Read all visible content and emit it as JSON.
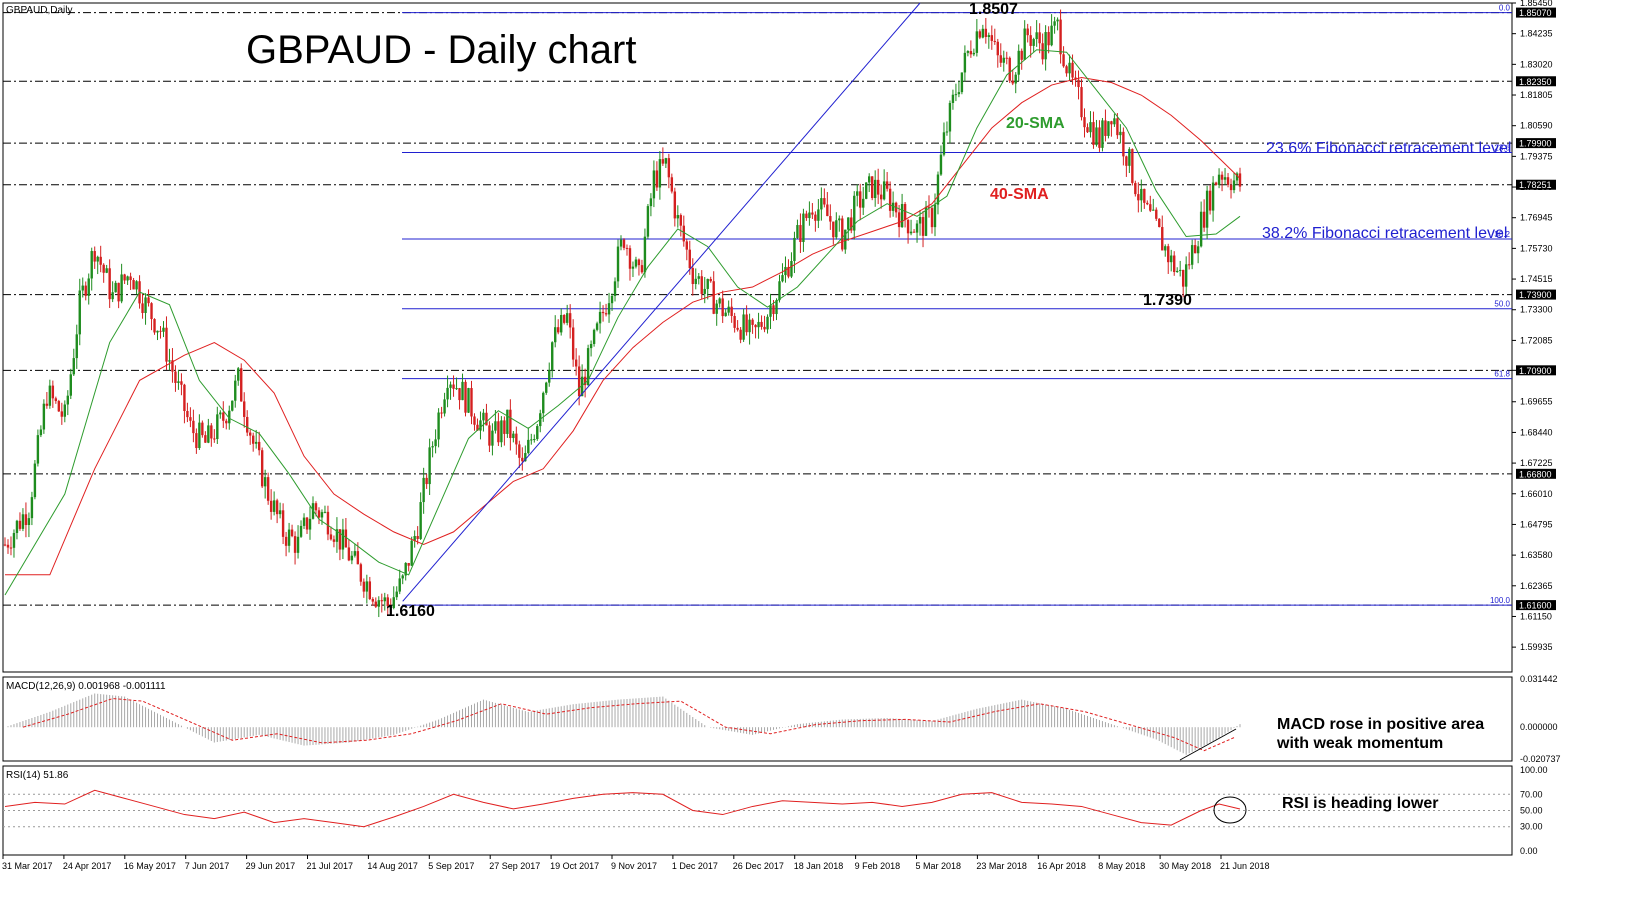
{
  "window": {
    "symbol_label": "GBPAUD,Daily"
  },
  "title": "GBPAUD - Daily chart",
  "colors": {
    "bull": "#1e8c1e",
    "bear": "#d42020",
    "sma20": "#2e9c2e",
    "sma40": "#e02020",
    "fib": "#2020d0",
    "trend": "#2020d0",
    "price_tag_bg": "#000000",
    "price_tag_text": "#ffffff",
    "macd_hist": "#a8a8a8",
    "macd_signal": "#e02020",
    "rsi_line": "#e02020",
    "label_red": "#e02020",
    "label_green": "#2e9c2e"
  },
  "annotations": {
    "high_label": "1.8507",
    "low_label": "1.6160",
    "swing_low_label": "1.7390",
    "sma20_label": "20-SMA",
    "sma40_label": "40-SMA",
    "fib236_label": "23.6% Fibonacci retracement level",
    "fib382_label": "38.2% Fibonacci retracement level",
    "macd_note_line1": "MACD rose in positive area",
    "macd_note_line2": "with weak momentum",
    "rsi_note": "RSI is heading lower"
  },
  "fib_levels": [
    {
      "pct": "0.0",
      "price": 1.8507
    },
    {
      "pct": "23.6",
      "price": 1.7953
    },
    {
      "pct": "38.2",
      "price": 1.761
    },
    {
      "pct": "50.0",
      "price": 1.7334
    },
    {
      "pct": "61.8",
      "price": 1.7057
    },
    {
      "pct": "100.0",
      "price": 1.616
    }
  ],
  "price_tags": [
    "1.85070",
    "1.82350",
    "1.79900",
    "1.78251",
    "1.73900",
    "1.70900",
    "1.66800",
    "1.61600"
  ],
  "macd_panel": {
    "label": "MACD(12,26,9) 0.001968 -0.001111",
    "ticks": [
      "0.031442",
      "0.000000",
      "-0.020737"
    ]
  },
  "rsi_panel": {
    "label": "RSI(14) 51.86",
    "ticks": [
      "100.00",
      "70.00",
      "50.00",
      "30.00",
      "0.00"
    ]
  },
  "chart_data": {
    "type": "candlestick",
    "title": "GBPAUD - Daily chart",
    "ylim": [
      1.5895,
      1.8545
    ],
    "y_ticks": [
      "1.85450",
      "1.84235",
      "1.83020",
      "1.81805",
      "1.80590",
      "1.79375",
      "1.78160",
      "1.76945",
      "1.75730",
      "1.74515",
      "1.73300",
      "1.72085",
      "1.70900",
      "1.69655",
      "1.68440",
      "1.67225",
      "1.66010",
      "1.64795",
      "1.63580",
      "1.62365",
      "1.61150",
      "1.59935"
    ],
    "x_labels": [
      "31 Mar 2017",
      "24 Apr 2017",
      "16 May 2017",
      "7 Jun 2017",
      "29 Jun 2017",
      "21 Jul 2017",
      "14 Aug 2017",
      "5 Sep 2017",
      "27 Sep 2017",
      "19 Oct 2017",
      "9 Nov 2017",
      "1 Dec 2017",
      "26 Dec 2017",
      "18 Jan 2018",
      "9 Feb 2018",
      "5 Mar 2018",
      "23 Mar 2018",
      "16 Apr 2018",
      "8 May 2018",
      "30 May 2018",
      "21 Jun 2018"
    ],
    "close_path": [
      [
        0,
        1.64
      ],
      [
        8,
        1.655
      ],
      [
        14,
        1.7
      ],
      [
        20,
        1.69
      ],
      [
        25,
        1.735
      ],
      [
        30,
        1.758
      ],
      [
        36,
        1.738
      ],
      [
        42,
        1.748
      ],
      [
        47,
        1.735
      ],
      [
        52,
        1.725
      ],
      [
        57,
        1.705
      ],
      [
        62,
        1.686
      ],
      [
        67,
        1.68
      ],
      [
        73,
        1.69
      ],
      [
        78,
        1.705
      ],
      [
        83,
        1.68
      ],
      [
        88,
        1.66
      ],
      [
        93,
        1.645
      ],
      [
        98,
        1.64
      ],
      [
        103,
        1.655
      ],
      [
        108,
        1.65
      ],
      [
        113,
        1.64
      ],
      [
        118,
        1.63
      ],
      [
        124,
        1.62
      ],
      [
        128,
        1.616
      ],
      [
        133,
        1.625
      ],
      [
        138,
        1.648
      ],
      [
        143,
        1.68
      ],
      [
        148,
        1.708
      ],
      [
        153,
        1.7
      ],
      [
        158,
        1.69
      ],
      [
        163,
        1.682
      ],
      [
        168,
        1.688
      ],
      [
        173,
        1.67
      ],
      [
        178,
        1.69
      ],
      [
        183,
        1.72
      ],
      [
        188,
        1.73
      ],
      [
        192,
        1.7
      ],
      [
        197,
        1.72
      ],
      [
        202,
        1.74
      ],
      [
        207,
        1.762
      ],
      [
        212,
        1.745
      ],
      [
        217,
        1.785
      ],
      [
        221,
        1.79
      ],
      [
        225,
        1.768
      ],
      [
        230,
        1.748
      ],
      [
        235,
        1.74
      ],
      [
        240,
        1.733
      ],
      [
        245,
        1.728
      ],
      [
        250,
        1.722
      ],
      [
        255,
        1.732
      ],
      [
        260,
        1.745
      ],
      [
        265,
        1.762
      ],
      [
        270,
        1.775
      ],
      [
        275,
        1.77
      ],
      [
        280,
        1.762
      ],
      [
        285,
        1.775
      ],
      [
        290,
        1.782
      ],
      [
        295,
        1.778
      ],
      [
        300,
        1.77
      ],
      [
        305,
        1.765
      ],
      [
        310,
        1.77
      ],
      [
        314,
        1.8
      ],
      [
        318,
        1.82
      ],
      [
        323,
        1.838
      ],
      [
        327,
        1.848
      ],
      [
        332,
        1.832
      ],
      [
        337,
        1.828
      ],
      [
        342,
        1.842
      ],
      [
        347,
        1.838
      ],
      [
        352,
        1.845
      ],
      [
        356,
        1.825
      ],
      [
        361,
        1.81
      ],
      [
        366,
        1.8
      ],
      [
        370,
        1.812
      ],
      [
        375,
        1.795
      ],
      [
        380,
        1.775
      ],
      [
        385,
        1.765
      ],
      [
        390,
        1.752
      ],
      [
        394,
        1.745
      ],
      [
        398,
        1.76
      ],
      [
        402,
        1.775
      ],
      [
        406,
        1.788
      ],
      [
        410,
        1.785
      ],
      [
        413,
        1.7825
      ]
    ],
    "sma20": [
      [
        0,
        1.62
      ],
      [
        20,
        1.66
      ],
      [
        35,
        1.72
      ],
      [
        45,
        1.74
      ],
      [
        55,
        1.735
      ],
      [
        65,
        1.705
      ],
      [
        75,
        1.69
      ],
      [
        85,
        1.684
      ],
      [
        95,
        1.668
      ],
      [
        105,
        1.65
      ],
      [
        115,
        1.642
      ],
      [
        125,
        1.633
      ],
      [
        135,
        1.628
      ],
      [
        145,
        1.655
      ],
      [
        155,
        1.682
      ],
      [
        165,
        1.693
      ],
      [
        175,
        1.686
      ],
      [
        185,
        1.695
      ],
      [
        195,
        1.705
      ],
      [
        205,
        1.73
      ],
      [
        215,
        1.75
      ],
      [
        225,
        1.765
      ],
      [
        235,
        1.758
      ],
      [
        245,
        1.742
      ],
      [
        255,
        1.734
      ],
      [
        265,
        1.742
      ],
      [
        275,
        1.755
      ],
      [
        285,
        1.768
      ],
      [
        295,
        1.775
      ],
      [
        305,
        1.77
      ],
      [
        315,
        1.778
      ],
      [
        325,
        1.805
      ],
      [
        335,
        1.826
      ],
      [
        345,
        1.836
      ],
      [
        355,
        1.835
      ],
      [
        365,
        1.82
      ],
      [
        375,
        1.805
      ],
      [
        385,
        1.78
      ],
      [
        395,
        1.762
      ],
      [
        405,
        1.763
      ],
      [
        413,
        1.77
      ]
    ],
    "sma40": [
      [
        0,
        1.628
      ],
      [
        15,
        1.628
      ],
      [
        30,
        1.67
      ],
      [
        45,
        1.705
      ],
      [
        60,
        1.715
      ],
      [
        70,
        1.72
      ],
      [
        80,
        1.713
      ],
      [
        90,
        1.7
      ],
      [
        100,
        1.675
      ],
      [
        110,
        1.66
      ],
      [
        120,
        1.652
      ],
      [
        130,
        1.645
      ],
      [
        140,
        1.64
      ],
      [
        150,
        1.645
      ],
      [
        160,
        1.655
      ],
      [
        170,
        1.665
      ],
      [
        180,
        1.67
      ],
      [
        190,
        1.685
      ],
      [
        200,
        1.705
      ],
      [
        210,
        1.718
      ],
      [
        220,
        1.728
      ],
      [
        230,
        1.736
      ],
      [
        240,
        1.74
      ],
      [
        250,
        1.742
      ],
      [
        260,
        1.748
      ],
      [
        270,
        1.755
      ],
      [
        280,
        1.76
      ],
      [
        290,
        1.764
      ],
      [
        300,
        1.768
      ],
      [
        310,
        1.775
      ],
      [
        320,
        1.79
      ],
      [
        330,
        1.805
      ],
      [
        340,
        1.815
      ],
      [
        350,
        1.822
      ],
      [
        360,
        1.825
      ],
      [
        370,
        1.823
      ],
      [
        380,
        1.818
      ],
      [
        390,
        1.81
      ],
      [
        400,
        1.8
      ],
      [
        413,
        1.785
      ]
    ],
    "trendline": [
      [
        133,
        1.6175
      ],
      [
        306,
        1.8545
      ]
    ],
    "macd_range": [
      -0.020737,
      0.031442
    ],
    "macd_path": [
      [
        0,
        0.0
      ],
      [
        15,
        0.01
      ],
      [
        30,
        0.022
      ],
      [
        40,
        0.02
      ],
      [
        55,
        0.005
      ],
      [
        70,
        -0.01
      ],
      [
        85,
        -0.005
      ],
      [
        100,
        -0.012
      ],
      [
        115,
        -0.01
      ],
      [
        130,
        -0.005
      ],
      [
        145,
        0.005
      ],
      [
        160,
        0.018
      ],
      [
        175,
        0.01
      ],
      [
        190,
        0.015
      ],
      [
        205,
        0.018
      ],
      [
        220,
        0.02
      ],
      [
        235,
        0.0
      ],
      [
        250,
        -0.005
      ],
      [
        265,
        0.002
      ],
      [
        280,
        0.005
      ],
      [
        295,
        0.006
      ],
      [
        310,
        0.004
      ],
      [
        325,
        0.012
      ],
      [
        340,
        0.018
      ],
      [
        355,
        0.012
      ],
      [
        370,
        0.002
      ],
      [
        385,
        -0.008
      ],
      [
        395,
        -0.018
      ],
      [
        405,
        -0.008
      ],
      [
        413,
        0.002
      ]
    ],
    "rsi_path": [
      [
        0,
        55
      ],
      [
        10,
        60
      ],
      [
        20,
        58
      ],
      [
        30,
        75
      ],
      [
        40,
        65
      ],
      [
        50,
        55
      ],
      [
        60,
        45
      ],
      [
        70,
        40
      ],
      [
        80,
        48
      ],
      [
        90,
        35
      ],
      [
        100,
        40
      ],
      [
        110,
        35
      ],
      [
        120,
        30
      ],
      [
        130,
        42
      ],
      [
        140,
        55
      ],
      [
        150,
        70
      ],
      [
        160,
        60
      ],
      [
        170,
        52
      ],
      [
        180,
        58
      ],
      [
        190,
        65
      ],
      [
        200,
        70
      ],
      [
        210,
        72
      ],
      [
        220,
        70
      ],
      [
        230,
        50
      ],
      [
        240,
        45
      ],
      [
        250,
        55
      ],
      [
        260,
        62
      ],
      [
        270,
        60
      ],
      [
        280,
        58
      ],
      [
        290,
        60
      ],
      [
        300,
        55
      ],
      [
        310,
        60
      ],
      [
        320,
        70
      ],
      [
        330,
        72
      ],
      [
        340,
        60
      ],
      [
        350,
        58
      ],
      [
        360,
        55
      ],
      [
        370,
        45
      ],
      [
        380,
        35
      ],
      [
        390,
        32
      ],
      [
        400,
        50
      ],
      [
        406,
        58
      ],
      [
        413,
        51.86
      ]
    ]
  }
}
